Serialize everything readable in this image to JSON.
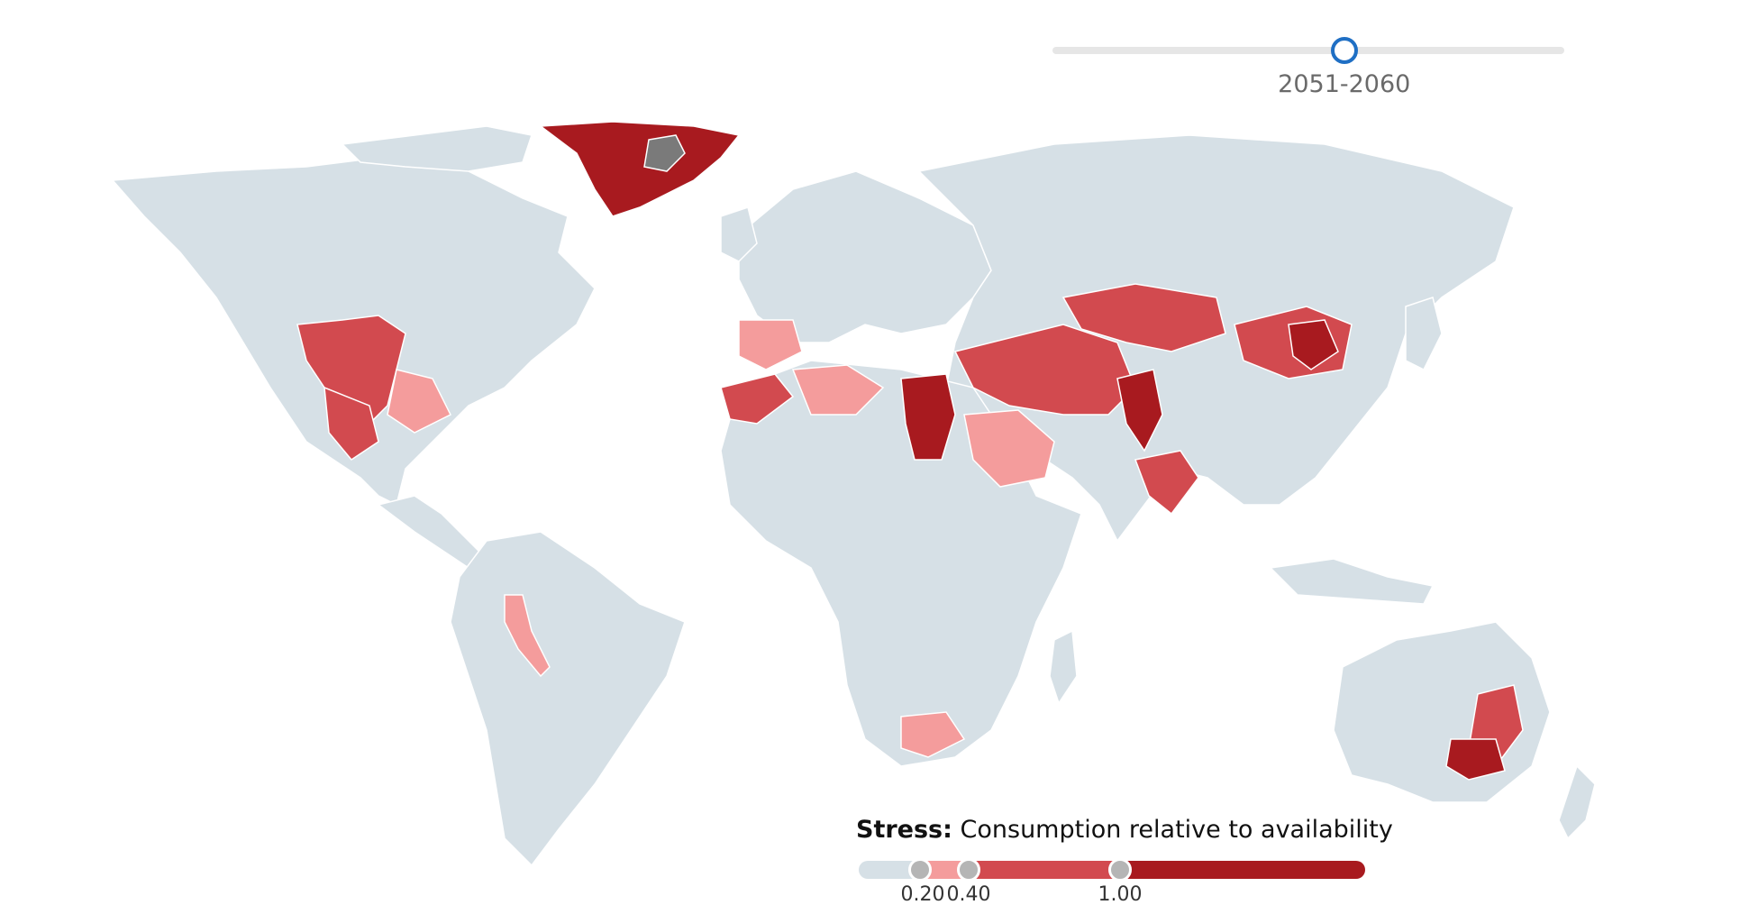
{
  "timeline": {
    "selected_period": "2051-2060",
    "position_fraction": 0.57
  },
  "legend": {
    "title_bold": "Stress:",
    "title_rest": "Consumption relative to availability",
    "ticks": [
      "0.20",
      "0.40",
      "1.00"
    ],
    "colors": {
      "none": "#d6e0e6",
      "low": "#f49c9c",
      "medium": "#d24a4f",
      "high": "#a81a1f",
      "no_data": "#7a7a7a"
    }
  },
  "map_regions": [
    {
      "name": "Greenland",
      "level": "high"
    },
    {
      "name": "Western United States",
      "level": "medium"
    },
    {
      "name": "Southern Great Plains",
      "level": "low"
    },
    {
      "name": "Northern Mexico",
      "level": "medium"
    },
    {
      "name": "Iberian Peninsula",
      "level": "low"
    },
    {
      "name": "Morocco",
      "level": "medium"
    },
    {
      "name": "North Africa",
      "level": "low"
    },
    {
      "name": "Egypt / Nile",
      "level": "high"
    },
    {
      "name": "Middle East",
      "level": "medium"
    },
    {
      "name": "Arabian Peninsula",
      "level": "low"
    },
    {
      "name": "Central Asia",
      "level": "medium"
    },
    {
      "name": "Pakistan / Indus",
      "level": "high"
    },
    {
      "name": "India",
      "level": "medium"
    },
    {
      "name": "Northern China",
      "level": "medium"
    },
    {
      "name": "Beijing region",
      "level": "high"
    },
    {
      "name": "Peru / Chile coast",
      "level": "low"
    },
    {
      "name": "South Africa",
      "level": "low"
    },
    {
      "name": "Murray-Darling",
      "level": "high"
    },
    {
      "name": "Eastern Australia",
      "level": "medium"
    }
  ]
}
